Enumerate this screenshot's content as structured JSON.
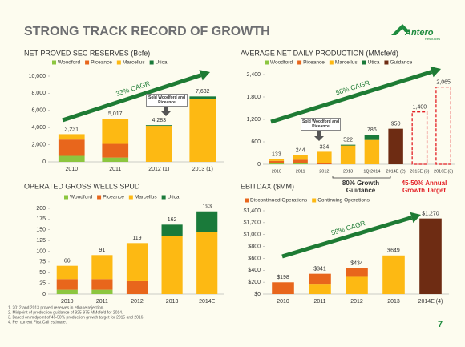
{
  "header": {
    "title": "STRONG TRACK RECORD OF GROWTH",
    "logo": "Antero",
    "logo_sub": "Resources"
  },
  "chart_data": [
    {
      "type": "bar",
      "title": "NET PROVED SEC RESERVES (Bcfe)",
      "categories": [
        "2010",
        "2011",
        "2012 (1)",
        "2013 (1)"
      ],
      "series": [
        {
          "name": "Woodford",
          "color": "#8cc63f",
          "values": [
            700,
            500,
            null,
            null
          ]
        },
        {
          "name": "Piceance",
          "color": "#e8661c",
          "values": [
            1900,
            1600,
            null,
            null
          ]
        },
        {
          "name": "Marcellus",
          "color": "#fdb913",
          "values": [
            631,
            2917,
            4200,
            7300
          ]
        },
        {
          "name": "Utica",
          "color": "#1a7a3a",
          "values": [
            null,
            null,
            83,
            332
          ]
        }
      ],
      "totals": [
        3231,
        5017,
        4283,
        7632
      ],
      "total_labels": [
        "3,231",
        "5,017",
        "4,283",
        "7,632"
      ],
      "ylim": [
        0,
        10000
      ],
      "yticks": [
        0,
        {
          "value": 2000,
          "label": "2,000"
        },
        {
          "value": 4000,
          "label": "4,000"
        },
        {
          "value": 6000,
          "label": "6,000"
        },
        {
          "value": 8000,
          "label": "8,000"
        },
        {
          "value": 10000,
          "label": "10,000"
        }
      ],
      "annotations": [
        "33% CAGR",
        "Sold Woodford and Piceance"
      ]
    },
    {
      "type": "bar",
      "title": "AVERAGE NET DAILY PRODUCTION (MMcfe/d)",
      "categories": [
        "2010",
        "2011",
        "2012",
        "2013",
        "1Q 2014",
        "2014E (2)",
        "2015E (3)",
        "2016E (3)"
      ],
      "series": [
        {
          "name": "Woodford",
          "color": "#8cc63f",
          "values": [
            30,
            40,
            null,
            null,
            null,
            null,
            null,
            null
          ]
        },
        {
          "name": "Piceance",
          "color": "#e8661c",
          "values": [
            60,
            80,
            34,
            null,
            null,
            null,
            null,
            null
          ]
        },
        {
          "name": "Marcellus",
          "color": "#fdb913",
          "values": [
            43,
            124,
            300,
            500,
            650,
            null,
            null,
            null
          ]
        },
        {
          "name": "Utica",
          "color": "#1a7a3a",
          "values": [
            null,
            null,
            null,
            22,
            136,
            null,
            null,
            null
          ]
        },
        {
          "name": "Guidance",
          "color": "#6e2c13",
          "values": [
            null,
            null,
            null,
            null,
            null,
            950,
            null,
            null
          ]
        }
      ],
      "totals": [
        133,
        244,
        334,
        522,
        786,
        950,
        1400,
        2065
      ],
      "total_labels": [
        "133",
        "244",
        "334",
        "522",
        "786",
        "950",
        "1,400",
        "2,065"
      ],
      "dashed_totals": [
        false,
        false,
        false,
        false,
        false,
        false,
        true,
        true
      ],
      "ylim": [
        0,
        2400
      ],
      "yticks": [
        0,
        600,
        {
          "value": 1200,
          "label": "1,200"
        },
        {
          "value": 1800,
          "label": "1,800"
        },
        {
          "value": 2400,
          "label": "2,400"
        }
      ],
      "annotations": [
        "58% CAGR",
        "Sold Woodford and Piceance",
        "80% Growth Guidance",
        "45-50% Annual Growth Target"
      ]
    },
    {
      "type": "bar",
      "title": "OPERATED GROSS WELLS SPUD",
      "categories": [
        "2010",
        "2011",
        "2012",
        "2013",
        "2014E"
      ],
      "series": [
        {
          "name": "Woodford",
          "color": "#8cc63f",
          "values": [
            10,
            10,
            null,
            null,
            null
          ]
        },
        {
          "name": "Piceance",
          "color": "#e8661c",
          "values": [
            25,
            25,
            30,
            null,
            null
          ]
        },
        {
          "name": "Marcellus",
          "color": "#fdb913",
          "values": [
            31,
            56,
            89,
            135,
            145
          ]
        },
        {
          "name": "Utica",
          "color": "#1a7a3a",
          "values": [
            null,
            null,
            null,
            27,
            48
          ]
        }
      ],
      "totals": [
        66,
        91,
        119,
        162,
        193
      ],
      "ylim": [
        0,
        200
      ],
      "yticks": [
        0,
        25,
        50,
        75,
        100,
        125,
        150,
        175,
        200
      ],
      "annotations": []
    },
    {
      "type": "bar",
      "title": "EBITDAX ($MM)",
      "categories": [
        "2010",
        "2011",
        "2012",
        "2013",
        "2014E (4)"
      ],
      "series": [
        {
          "name": "Discontinued Operations",
          "color": "#e8661c",
          "values": [
            198,
            181,
            144,
            null,
            null
          ]
        },
        {
          "name": "Continuing Operations",
          "color": "#fdb913",
          "values": [
            null,
            160,
            290,
            649,
            1270
          ],
          "point_colors": [
            null,
            null,
            null,
            null,
            "#6e2c13"
          ]
        }
      ],
      "stack_reverse": true,
      "totals": [
        198,
        341,
        434,
        649,
        1270
      ],
      "total_labels": [
        "$198",
        "$341",
        "$434",
        "$649",
        "$1,270"
      ],
      "ylim": [
        0,
        1400
      ],
      "yticks": [
        {
          "value": 0,
          "label": "$0"
        },
        {
          "value": 200,
          "label": "$200"
        },
        {
          "value": 400,
          "label": "$400"
        },
        {
          "value": 600,
          "label": "$600"
        },
        {
          "value": 800,
          "label": "$800"
        },
        {
          "value": 1000,
          "label": "$1,000"
        },
        {
          "value": 1200,
          "label": "$1,200"
        },
        {
          "value": 1400,
          "label": "$1,400"
        }
      ],
      "annotations": [
        "59% CAGR"
      ]
    }
  ],
  "footnotes": [
    "1.  2012 and 2013 proved reserves in ethane rejection.",
    "2.  Midpoint of production guidance of 925-975 MMcfe/d for 2014.",
    "3.  Based on midpoint of 45-50% production growth target for 2015 and 2016.",
    "4.  Per current First Call estimate."
  ],
  "page_number": "7"
}
